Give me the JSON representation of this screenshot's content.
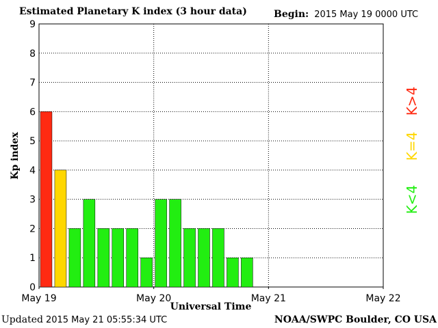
{
  "header": {
    "title": "Estimated Planetary K index (3 hour data)",
    "begin_label": "Begin:",
    "begin_value": "2015 May 19 0000 UTC"
  },
  "footer": {
    "updated_label": "Updated",
    "updated_value": "2015 May 21 05:55:34 UTC",
    "source": "NOAA/SWPC Boulder, CO USA"
  },
  "legend": {
    "high": "K>4",
    "equal": "K=4",
    "low": "K<4"
  },
  "colors": {
    "high": "#ff2a12",
    "equal": "#ffd700",
    "low": "#22ee11",
    "grid": "#000000"
  },
  "chart_data": {
    "type": "bar",
    "title": "Estimated Planetary K index (3 hour data)",
    "xlabel": "Universal Time",
    "ylabel": "Kp index",
    "ylim": [
      0,
      9
    ],
    "yticks": [
      "0",
      "1",
      "2",
      "3",
      "4",
      "5",
      "6",
      "7",
      "8",
      "9"
    ],
    "xticks": [
      "May 19",
      "May 20",
      "May 21",
      "May 22"
    ],
    "bars_per_day": 8,
    "values": [
      6,
      4,
      2,
      3,
      2,
      2,
      2,
      1,
      3,
      3,
      2,
      2,
      2,
      1,
      1
    ],
    "grid": true
  }
}
